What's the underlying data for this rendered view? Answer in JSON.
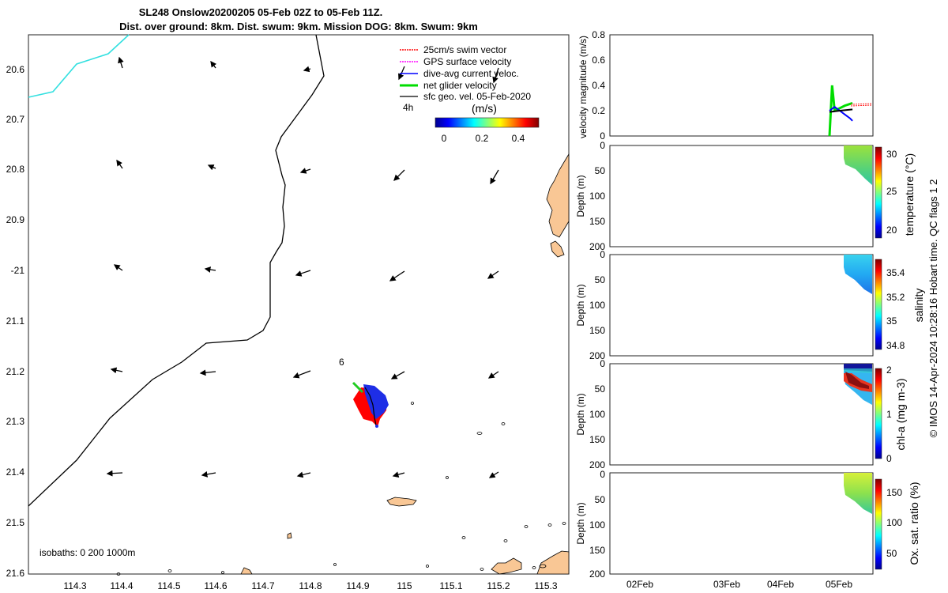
{
  "title": {
    "line1": "SL248 Onslow20200205 05-Feb 02Z to 05-Feb 11Z.",
    "line2": "Dist. over ground: 8km. Dist. swum: 9km. Mission DOG: 8km. Swum: 9km"
  },
  "map": {
    "lon_ticks": [
      "114.3",
      "114.4",
      "114.5",
      "114.6",
      "114.7",
      "114.8",
      "114.9",
      "115",
      "115.1",
      "115.2",
      "115.3"
    ],
    "lat_ticks": [
      "20.6",
      "20.7",
      "20.8",
      "20.9",
      "-21",
      "21.1",
      "21.2",
      "21.3",
      "21.4",
      "21.5",
      "21.6"
    ],
    "legend": [
      {
        "label": "25cm/s swim vector",
        "color": "#ff0000"
      },
      {
        "label": "GPS surface velocity",
        "color": "#ff00ff"
      },
      {
        "label": "dive-avg current veloc.",
        "color": "#0000ff"
      },
      {
        "label": "net glider velocity",
        "color": "#00dd00"
      },
      {
        "label": "sfc geo. vel. 05-Feb-2020",
        "color": "#000000"
      }
    ],
    "scale_label": "4h",
    "colorbar_unit": "(m/s)",
    "colorbar_ticks": [
      "0",
      "0.2",
      "0.4"
    ],
    "marker_label": "6",
    "isobaths_label": "isobaths: 0   200  1000m"
  },
  "panels": [
    {
      "id": "velocity",
      "ylabel": "velocity magnitude (m/s)",
      "yticks": [
        "0",
        "0.2",
        "0.4",
        "0.6",
        "0.8"
      ],
      "cb_label": "",
      "cb_ticks": []
    },
    {
      "id": "temperature",
      "ylabel": "Depth (m)",
      "yticks": [
        "0",
        "50",
        "100",
        "150",
        "200"
      ],
      "cb_label": "temperature (°C)",
      "cb_ticks": [
        "30",
        "25",
        "20"
      ]
    },
    {
      "id": "salinity",
      "ylabel": "Depth (m)",
      "yticks": [
        "0",
        "50",
        "100",
        "150",
        "200"
      ],
      "cb_label": "salinity",
      "cb_ticks": [
        "35.4",
        "35.2",
        "35",
        "34.8"
      ]
    },
    {
      "id": "chla",
      "ylabel": "Depth (m)",
      "yticks": [
        "0",
        "50",
        "100",
        "150",
        "200"
      ],
      "cb_label": "chl-a (mg m-3)",
      "cb_ticks": [
        "2",
        "1",
        "0"
      ]
    },
    {
      "id": "oxygen",
      "ylabel": "Depth (m)",
      "yticks": [
        "0",
        "50",
        "100",
        "150",
        "200"
      ],
      "cb_label": "Ox. sat. ratio (%)",
      "cb_ticks": [
        "150",
        "100",
        "50"
      ]
    }
  ],
  "time_ticks": [
    "02Feb",
    "03Feb",
    "04Feb",
    "05Feb"
  ],
  "footer": "© IMOS 14-Apr-2024 10:28:16 Hobart time. QC flags 1  2",
  "chart_data": {
    "type": "line",
    "x_label": "",
    "time_ticks": [
      "02Feb",
      "03Feb",
      "04Feb",
      "05Feb"
    ],
    "velocity_ylim": [
      0,
      0.8
    ],
    "series": [
      {
        "name": "net glider velocity",
        "color": "#00dd00",
        "x": [
          "05Feb 02Z",
          "05Feb 03Z",
          "05Feb 04Z",
          "05Feb 06Z",
          "05Feb 08Z",
          "05Feb 11Z"
        ],
        "values": [
          0.0,
          0.4,
          0.2,
          0.22,
          0.24,
          0.26
        ]
      },
      {
        "name": "dive-avg current veloc.",
        "color": "#0000ff",
        "x": [
          "05Feb 02Z",
          "05Feb 04Z",
          "05Feb 06Z",
          "05Feb 08Z",
          "05Feb 10Z",
          "05Feb 11Z"
        ],
        "values": [
          0.2,
          0.23,
          0.2,
          0.17,
          0.14,
          0.12
        ]
      },
      {
        "name": "sfc geo. vel. 05-Feb-2020",
        "color": "#000000",
        "x": [
          "05Feb 02Z",
          "05Feb 06Z",
          "05Feb 11Z"
        ],
        "values": [
          0.19,
          0.2,
          0.21
        ]
      }
    ],
    "depth_ylim": [
      0,
      200
    ],
    "temperature_range": [
      18,
      30.5
    ],
    "salinity_range": [
      34.75,
      35.5
    ],
    "chla_range": [
      0,
      2
    ],
    "oxygen_range": [
      25,
      175
    ]
  }
}
